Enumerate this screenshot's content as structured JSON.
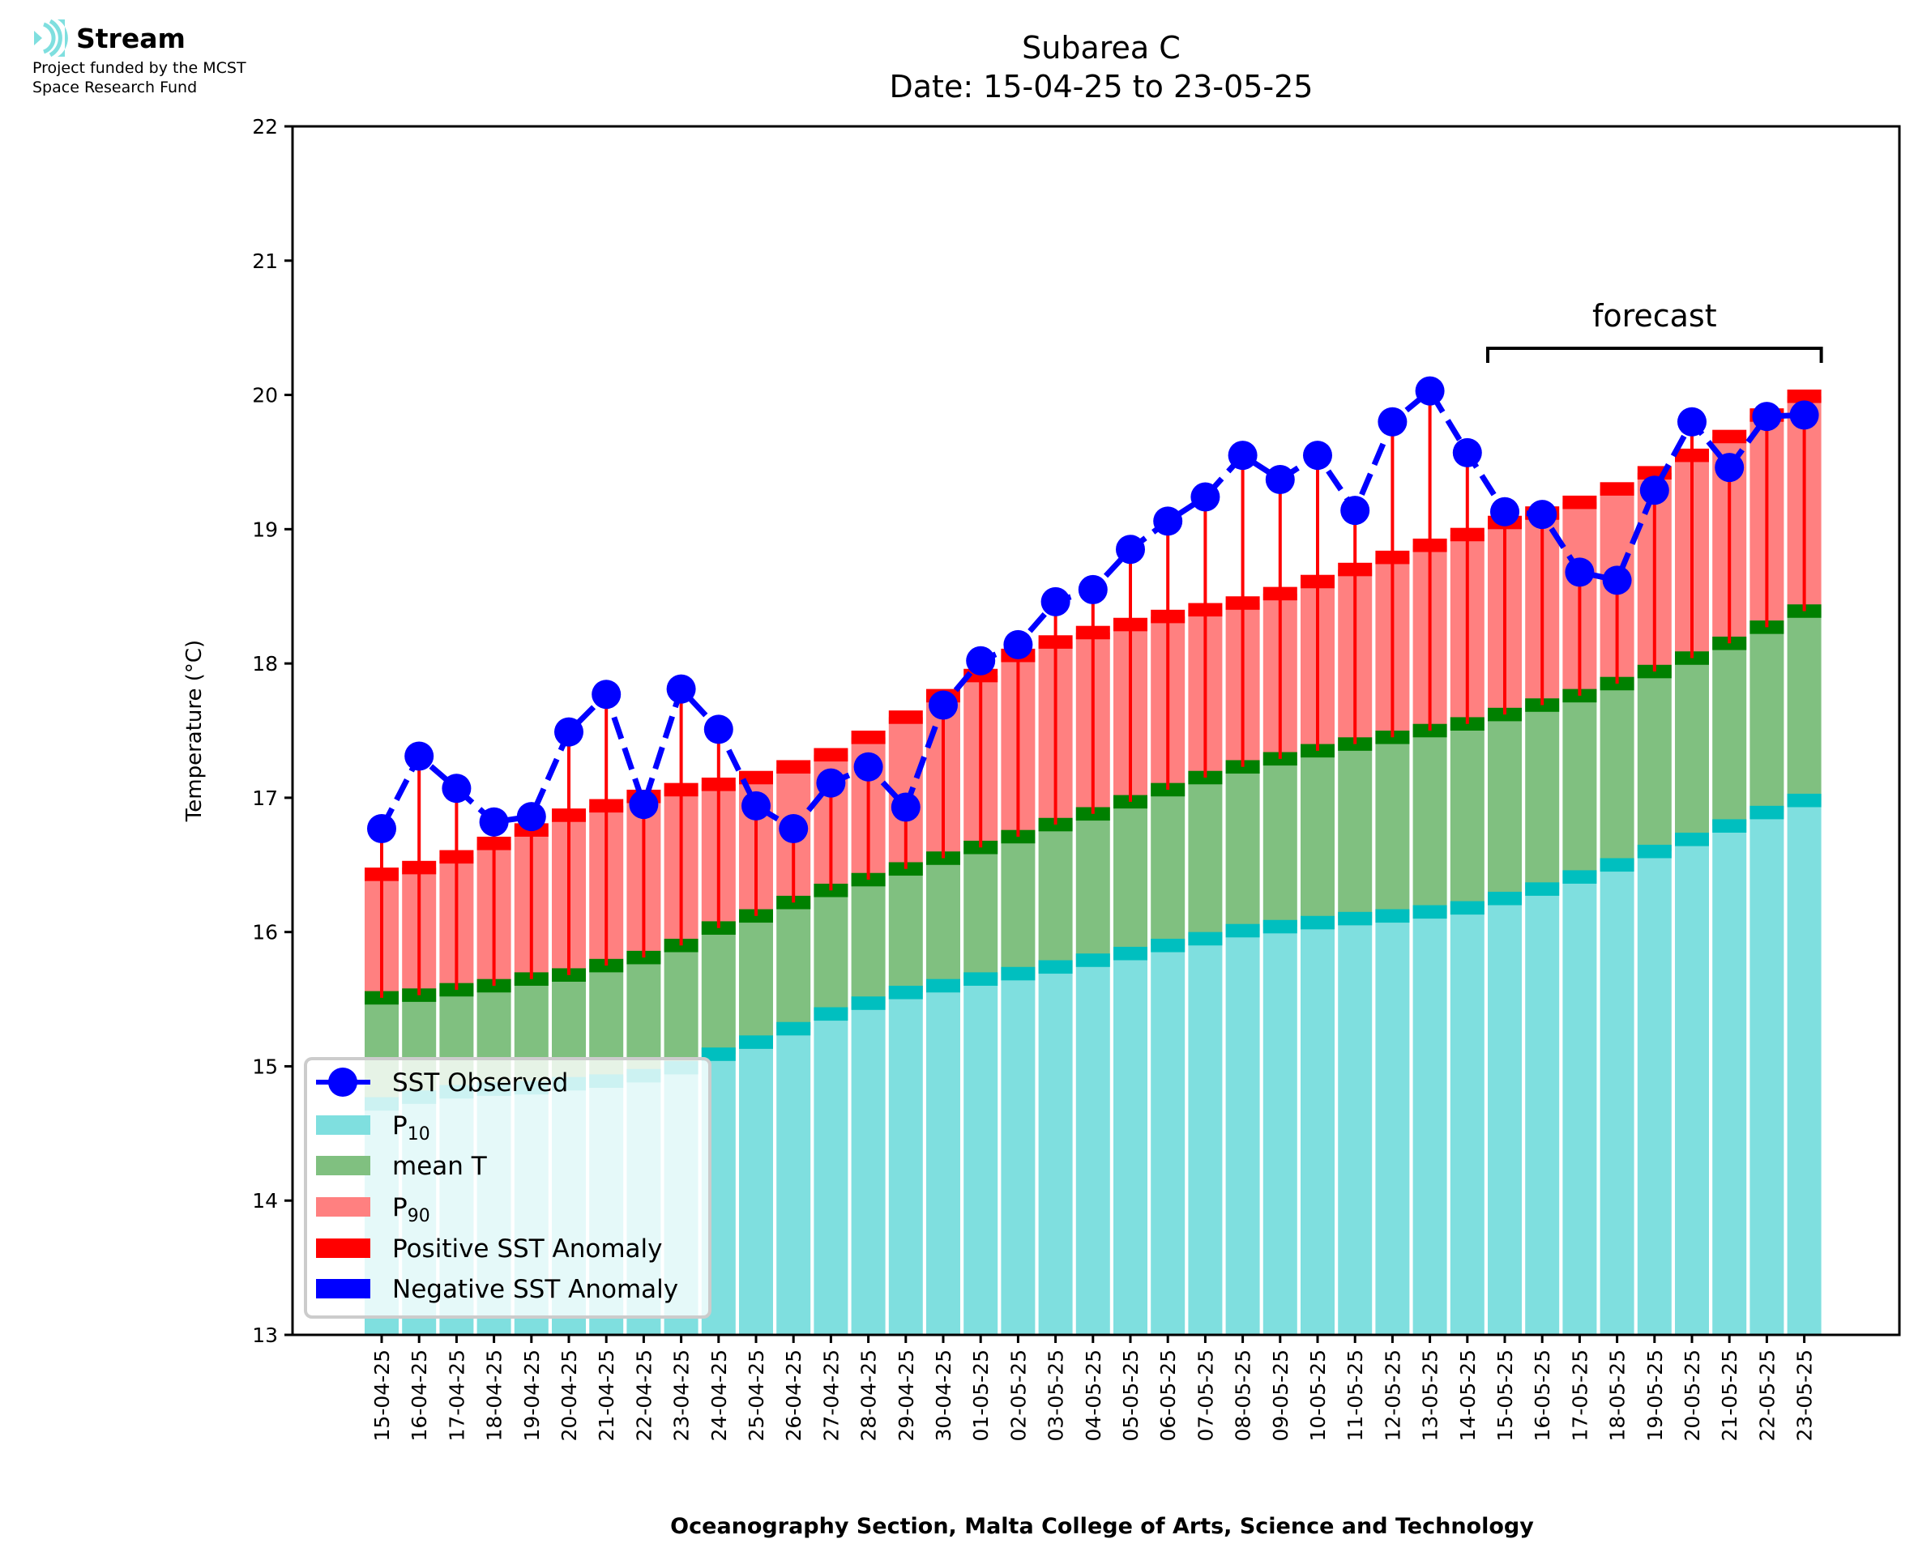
{
  "branding": {
    "name": "Stream",
    "funding_line_1": "Project funded by the MCST",
    "funding_line_2": "Space Research Fund",
    "logo_icon": "stream-waves-icon"
  },
  "colors": {
    "p10": "#7fdfdf",
    "p10_band": "#00bfbf",
    "mean": "#80c080",
    "mean_band": "#008000",
    "p90": "#ff8080",
    "p90_band": "#ff0000",
    "positive_anomaly": "#ff0000",
    "negative_anomaly": "#0000ff",
    "sst": "#0000ff"
  },
  "chart_data": {
    "type": "bar",
    "title": "Subarea C",
    "subtitle": "Date: 15-04-25 to 23-05-25",
    "xlabel": "Oceanography Section, Malta College of Arts, Science and Technology",
    "ylabel": "Temperature (°C)",
    "ylim": [
      13,
      22
    ],
    "yticks": [
      "13",
      "14",
      "15",
      "16",
      "17",
      "18",
      "19",
      "20",
      "21",
      "22"
    ],
    "grid": false,
    "legend_position": "lower-left",
    "annotation": {
      "text": "forecast",
      "start_category": "15-05-25",
      "end_category": "23-05-25"
    },
    "categories": [
      "15-04-25",
      "16-04-25",
      "17-04-25",
      "18-04-25",
      "19-04-25",
      "20-04-25",
      "21-04-25",
      "22-04-25",
      "23-04-25",
      "24-04-25",
      "25-04-25",
      "26-04-25",
      "27-04-25",
      "28-04-25",
      "29-04-25",
      "30-04-25",
      "01-05-25",
      "02-05-25",
      "03-05-25",
      "04-05-25",
      "05-05-25",
      "06-05-25",
      "07-05-25",
      "08-05-25",
      "09-05-25",
      "10-05-25",
      "11-05-25",
      "12-05-25",
      "13-05-25",
      "14-05-25",
      "15-05-25",
      "16-05-25",
      "17-05-25",
      "18-05-25",
      "19-05-25",
      "20-05-25",
      "21-05-25",
      "22-05-25",
      "23-05-25"
    ],
    "legend": [
      {
        "label": "SST Observed",
        "sub": "",
        "kind": "line-marker",
        "color_key": "sst"
      },
      {
        "label": "P",
        "sub": "10",
        "kind": "patch",
        "color_key": "p10"
      },
      {
        "label": "mean T",
        "sub": "",
        "kind": "patch",
        "color_key": "mean"
      },
      {
        "label": "P",
        "sub": "90",
        "kind": "patch",
        "color_key": "p90"
      },
      {
        "label": "Positive SST Anomaly",
        "sub": "",
        "kind": "patch",
        "color_key": "positive_anomaly"
      },
      {
        "label": "Negative SST Anomaly",
        "sub": "",
        "kind": "patch",
        "color_key": "negative_anomaly"
      }
    ],
    "series": [
      {
        "name": "P10",
        "type": "bar",
        "values": [
          14.72,
          14.77,
          14.81,
          14.83,
          14.84,
          14.87,
          14.89,
          14.93,
          14.99,
          15.09,
          15.18,
          15.28,
          15.39,
          15.47,
          15.55,
          15.6,
          15.65,
          15.69,
          15.74,
          15.79,
          15.84,
          15.9,
          15.95,
          16.01,
          16.04,
          16.07,
          16.1,
          16.12,
          16.15,
          16.18,
          16.25,
          16.32,
          16.41,
          16.5,
          16.6,
          16.69,
          16.79,
          16.89,
          16.98
        ]
      },
      {
        "name": "mean T",
        "type": "bar",
        "values": [
          15.51,
          15.53,
          15.57,
          15.6,
          15.65,
          15.68,
          15.75,
          15.81,
          15.9,
          16.03,
          16.12,
          16.22,
          16.31,
          16.39,
          16.47,
          16.55,
          16.63,
          16.71,
          16.8,
          16.88,
          16.97,
          17.06,
          17.15,
          17.23,
          17.29,
          17.35,
          17.4,
          17.45,
          17.5,
          17.55,
          17.62,
          17.69,
          17.76,
          17.85,
          17.94,
          18.04,
          18.15,
          18.27,
          18.39
        ]
      },
      {
        "name": "P90",
        "type": "bar",
        "values": [
          16.43,
          16.48,
          16.56,
          16.66,
          16.76,
          16.87,
          16.94,
          17.01,
          17.06,
          17.1,
          17.15,
          17.23,
          17.32,
          17.45,
          17.6,
          17.76,
          17.91,
          18.06,
          18.16,
          18.23,
          18.29,
          18.35,
          18.4,
          18.45,
          18.52,
          18.61,
          18.7,
          18.79,
          18.88,
          18.96,
          19.05,
          19.12,
          19.2,
          19.3,
          19.42,
          19.55,
          19.69,
          19.85,
          19.99
        ]
      },
      {
        "name": "SST Observed",
        "type": "line",
        "values": [
          16.77,
          17.31,
          17.07,
          16.82,
          16.86,
          17.49,
          17.77,
          16.95,
          17.81,
          17.51,
          16.94,
          16.77,
          17.11,
          17.23,
          16.93,
          17.69,
          18.02,
          18.14,
          18.46,
          18.55,
          18.85,
          19.06,
          19.24,
          19.55,
          19.37,
          19.55,
          19.14,
          19.8,
          20.03,
          19.57,
          19.13,
          19.11,
          18.68,
          18.62,
          19.29,
          19.8,
          19.46,
          19.84,
          19.85
        ]
      }
    ]
  }
}
